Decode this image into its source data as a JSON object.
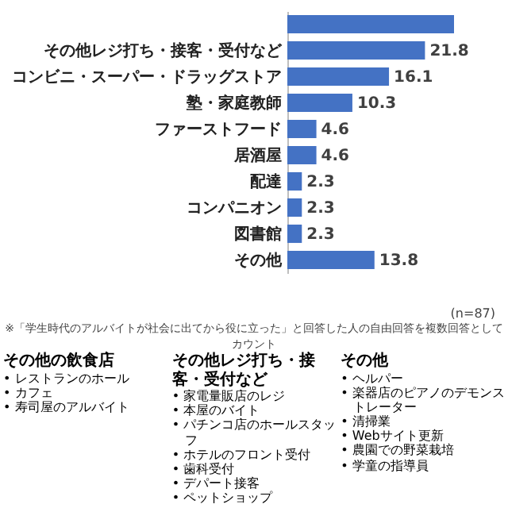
{
  "chart_data": {
    "type": "bar",
    "orientation": "horizontal",
    "categories": [
      null,
      "その他レジ打ち・接客・受付など",
      "コンビニ・スーパー・ドラッグストア",
      "塾・家庭教師",
      "ファーストフード",
      "居酒屋",
      "配達",
      "コンパニオン",
      "図書館",
      "その他"
    ],
    "values": [
      26.4,
      21.8,
      16.1,
      10.3,
      4.6,
      4.6,
      2.3,
      2.3,
      2.3,
      13.8
    ],
    "value_labels": [
      null,
      "21.8",
      "16.1",
      "10.3",
      "4.6",
      "4.6",
      "2.3",
      "2.3",
      "2.3",
      "13.8"
    ],
    "color": "#4472c4",
    "tick_labels": "y",
    "annotations": [
      "(n=87)",
      "※「学生時代のアルバイトが社会に出てから役に立った」と回答した人の自由回答を複数回答としてカウント",
      "その他の飲食店",
      "• レストランのホール",
      "• カフェ",
      "• 寿司屋のアルバイト",
      "その他レジ打ち・接客・受付など",
      "• 家電量販店のレジ",
      "• 本屋のバイト",
      "• パチンコ店のホールスタッフ",
      "• ホテルのフロント受付",
      "• 歯科受付",
      "• デパート接客",
      "• ペットショップ",
      "その他",
      "• ヘルパー",
      "• 楽器店のピアノのデモンストレーター",
      "• 清掃業",
      "• Webサイト更新",
      "• 農園での野菜栽培",
      "• 学童の指導員"
    ]
  }
}
